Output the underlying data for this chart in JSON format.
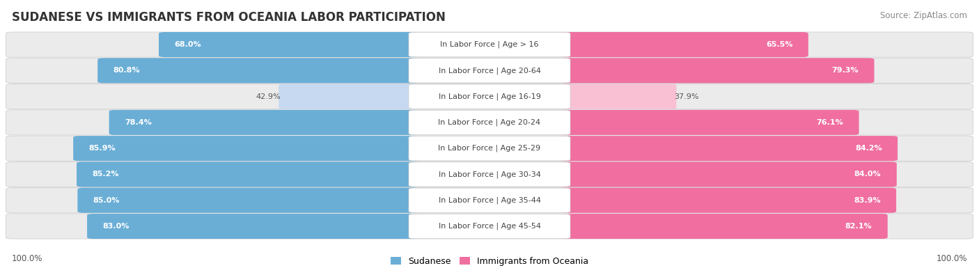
{
  "title": "SUDANESE VS IMMIGRANTS FROM OCEANIA LABOR PARTICIPATION",
  "source": "Source: ZipAtlas.com",
  "categories": [
    "In Labor Force | Age > 16",
    "In Labor Force | Age 20-64",
    "In Labor Force | Age 16-19",
    "In Labor Force | Age 20-24",
    "In Labor Force | Age 25-29",
    "In Labor Force | Age 30-34",
    "In Labor Force | Age 35-44",
    "In Labor Force | Age 45-54"
  ],
  "sudanese": [
    68.0,
    80.8,
    42.9,
    78.4,
    85.9,
    85.2,
    85.0,
    83.0
  ],
  "oceania": [
    65.5,
    79.3,
    37.9,
    76.1,
    84.2,
    84.0,
    83.9,
    82.1
  ],
  "sudanese_color": "#6aaed6",
  "sudanese_color_light": "#c6d9f0",
  "oceania_color": "#f06fa0",
  "oceania_color_light": "#f9c0d4",
  "row_bg_color": "#ebebeb",
  "row_border_color": "#d0d0d0",
  "title_fontsize": 12,
  "source_fontsize": 8.5,
  "label_fontsize": 8,
  "value_fontsize": 8,
  "max_value": 100.0,
  "legend_labels": [
    "Sudanese",
    "Immigrants from Oceania"
  ],
  "footer_value": "100.0%"
}
